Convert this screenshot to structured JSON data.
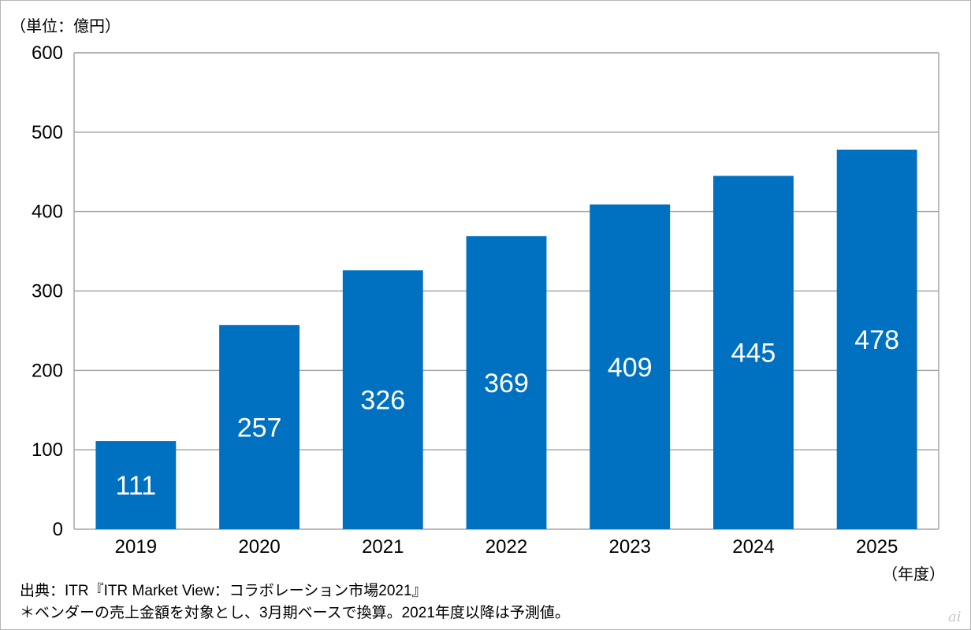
{
  "unit_label": "（単位：億円）",
  "year_unit_label": "（年度）",
  "source_note": "出典：ITR『ITR Market View：コラボレーション市場2021』",
  "footnote": "＊ベンダーの売上金額を対象とし、3月期ベースで換算。2021年度以降は予測値。",
  "logo_text": "ai",
  "colors": {
    "bar": "#0070C0",
    "grid": "#a6a6a6",
    "axis": "#a6a6a6"
  },
  "chart_data": {
    "type": "bar",
    "title": "",
    "xlabel": "（年度）",
    "ylabel": "（単位：億円）",
    "categories": [
      "2019",
      "2020",
      "2021",
      "2022",
      "2023",
      "2024",
      "2025"
    ],
    "values": [
      111,
      257,
      326,
      369,
      409,
      445,
      478
    ],
    "data_labels": [
      "111",
      "257",
      "326",
      "369",
      "409",
      "445",
      "478"
    ],
    "ylim": [
      0,
      600
    ],
    "yticks": [
      0,
      100,
      200,
      300,
      400,
      500,
      600
    ],
    "grid": true,
    "legend": "none"
  }
}
